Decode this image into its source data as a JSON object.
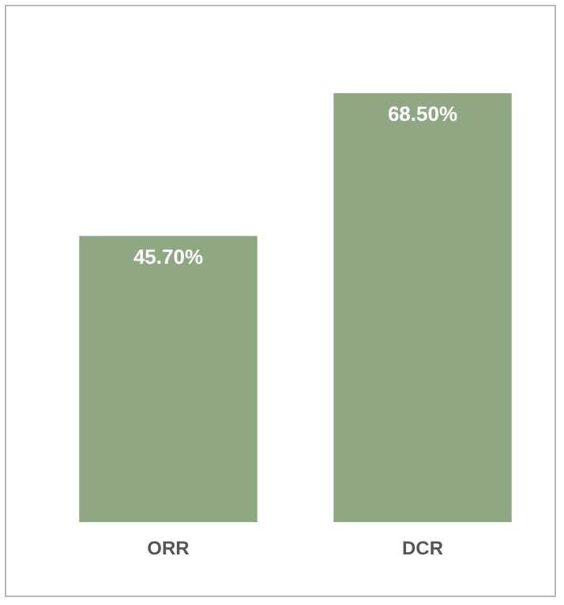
{
  "chart_data": {
    "type": "bar",
    "categories": [
      "ORR",
      "DCR"
    ],
    "values": [
      45.7,
      68.5
    ],
    "value_labels": [
      "45.70%",
      "68.50%"
    ],
    "color": "#8fa783",
    "tick_labels": "x",
    "grid": false,
    "legend": false
  }
}
